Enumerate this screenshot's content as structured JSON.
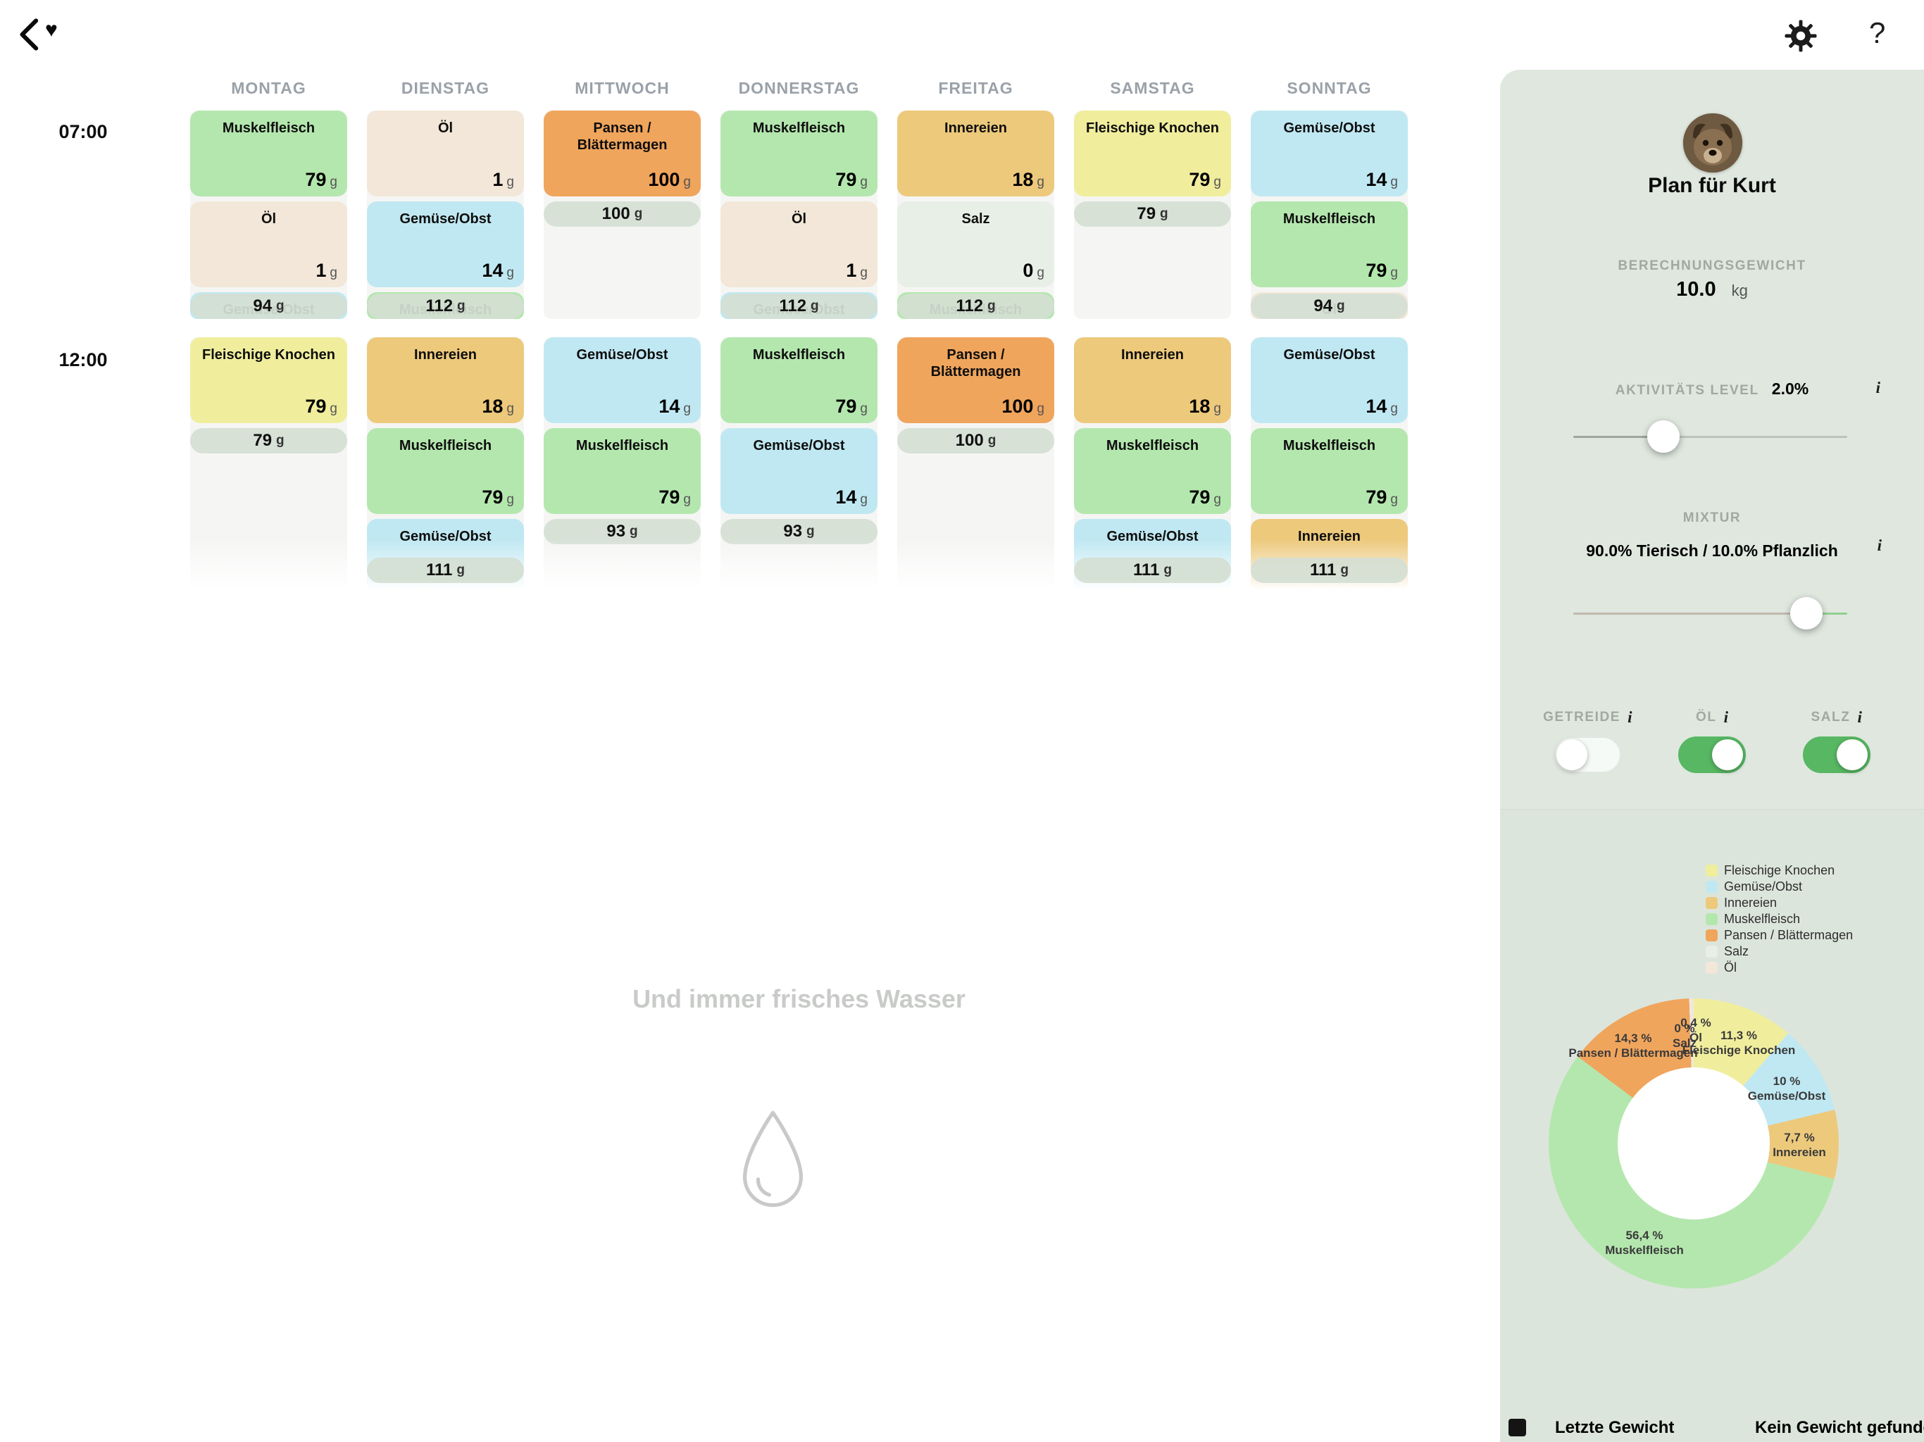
{
  "topbar": {
    "help_label": "?"
  },
  "calendar": {
    "unit": "g",
    "water_note": "Und immer frisches Wasser",
    "days": [
      "MONTAG",
      "DIENSTAG",
      "MITTWOCH",
      "DONNERSTAG",
      "FREITAG",
      "SAMSTAG",
      "SONNTAG"
    ],
    "rows": [
      {
        "time": "07:00",
        "blocks": [
          {
            "total": "94",
            "cards": [
              {
                "food": "Muskelfleisch",
                "amount": "79"
              },
              {
                "food": "Öl",
                "amount": "1"
              },
              {
                "food": "Gemüse/Obst",
                "amount": "",
                "cut": true
              }
            ]
          },
          {
            "total": "112",
            "cards": [
              {
                "food": "Öl",
                "amount": "1"
              },
              {
                "food": "Gemüse/Obst",
                "amount": "14"
              },
              {
                "food": "Muskelfleisch",
                "amount": "",
                "cut": true
              }
            ]
          },
          {
            "total": "100",
            "cards": [
              {
                "food": "Pansen / Blättermagen",
                "amount": "100"
              }
            ]
          },
          {
            "total": "112",
            "cards": [
              {
                "food": "Muskelfleisch",
                "amount": "79"
              },
              {
                "food": "Öl",
                "amount": "1"
              },
              {
                "food": "Gemüse/Obst",
                "amount": "",
                "cut": true
              }
            ]
          },
          {
            "total": "112",
            "cards": [
              {
                "food": "Innereien",
                "amount": "18"
              },
              {
                "food": "Salz",
                "amount": "0"
              },
              {
                "food": "Muskelfleisch",
                "amount": "",
                "cut": true
              }
            ]
          },
          {
            "total": "79",
            "cards": [
              {
                "food": "Fleischige Knochen",
                "amount": "79"
              }
            ]
          },
          {
            "total": "94",
            "cards": [
              {
                "food": "Gemüse/Obst",
                "amount": "14"
              },
              {
                "food": "Muskelfleisch",
                "amount": "79"
              },
              {
                "food": "Öl",
                "amount": "",
                "cut": true
              }
            ]
          }
        ]
      },
      {
        "time": "12:00",
        "blocks": [
          {
            "total": "79",
            "cards": [
              {
                "food": "Fleischige Knochen",
                "amount": "79"
              }
            ]
          },
          {
            "total": "111",
            "cards": [
              {
                "food": "Innereien",
                "amount": "18"
              },
              {
                "food": "Muskelfleisch",
                "amount": "79"
              },
              {
                "food": "Gemüse/Obst",
                "amount": "",
                "cut": true
              }
            ]
          },
          {
            "total": "93",
            "cards": [
              {
                "food": "Gemüse/Obst",
                "amount": "14"
              },
              {
                "food": "Muskelfleisch",
                "amount": "79"
              }
            ]
          },
          {
            "total": "93",
            "cards": [
              {
                "food": "Muskelfleisch",
                "amount": "79"
              },
              {
                "food": "Gemüse/Obst",
                "amount": "14"
              }
            ]
          },
          {
            "total": "100",
            "cards": [
              {
                "food": "Pansen / Blättermagen",
                "amount": "100"
              }
            ]
          },
          {
            "total": "111",
            "cards": [
              {
                "food": "Innereien",
                "amount": "18"
              },
              {
                "food": "Muskelfleisch",
                "amount": "79"
              },
              {
                "food": "Gemüse/Obst",
                "amount": "",
                "cut": true
              }
            ]
          },
          {
            "total": "111",
            "cards": [
              {
                "food": "Gemüse/Obst",
                "amount": "14"
              },
              {
                "food": "Muskelfleisch",
                "amount": "79"
              },
              {
                "food": "Innereien",
                "amount": "",
                "cut": true
              }
            ]
          }
        ]
      }
    ]
  },
  "foods": {
    "Muskelfleisch": "#b4e7ae",
    "Öl": "#f2e7d8",
    "Gemüse/Obst": "#c0e8f2",
    "Innereien": "#edc97c",
    "Fleischige Knochen": "#f0ee9d",
    "Pansen / Blättermagen": "#f0a55c",
    "Salz": "#e8efe7"
  },
  "sidebar": {
    "title": "Plan für Kurt",
    "weight_label": "BERECHNUNGSGEWICHT",
    "weight_value": "10.0",
    "weight_unit": "kg",
    "activity_label": "AKTIVITÄTS LEVEL",
    "activity_value": "2.0%",
    "activity_percent": 33,
    "mixture_label": "MIXTUR",
    "mixture_value": "90.0% Tierisch / 10.0% Pflanzlich",
    "mixture_percent": 85,
    "info_icon": "i",
    "toggles": [
      {
        "label": "GETREIDE",
        "on": false
      },
      {
        "label": "ÖL",
        "on": true
      },
      {
        "label": "SALZ",
        "on": true
      }
    ],
    "footer": {
      "label": "Letzte Gewicht",
      "value": "Kein Gewicht gefunden"
    }
  },
  "chart_data": {
    "type": "pie",
    "donut": true,
    "legend_position": "top-right",
    "slices": [
      {
        "name": "Fleischige Knochen",
        "pct": 11.3,
        "label": "11,3 %",
        "color": "#f0ee9d"
      },
      {
        "name": "Gemüse/Obst",
        "pct": 10.0,
        "label": "10 %",
        "color": "#c0e8f2"
      },
      {
        "name": "Innereien",
        "pct": 7.7,
        "label": "7,7 %",
        "color": "#edc97c"
      },
      {
        "name": "Muskelfleisch",
        "pct": 56.4,
        "label": "56,4 %",
        "color": "#b4e7ae"
      },
      {
        "name": "Pansen / Blättermagen",
        "pct": 14.3,
        "label": "14,3 %",
        "color": "#f0a55c"
      },
      {
        "name": "Salz",
        "pct": 0.1,
        "label": "0 %",
        "color": "#e8efe7"
      },
      {
        "name": "Öl",
        "pct": 0.4,
        "label": "0,4 %",
        "color": "#f2e7d8"
      }
    ]
  }
}
